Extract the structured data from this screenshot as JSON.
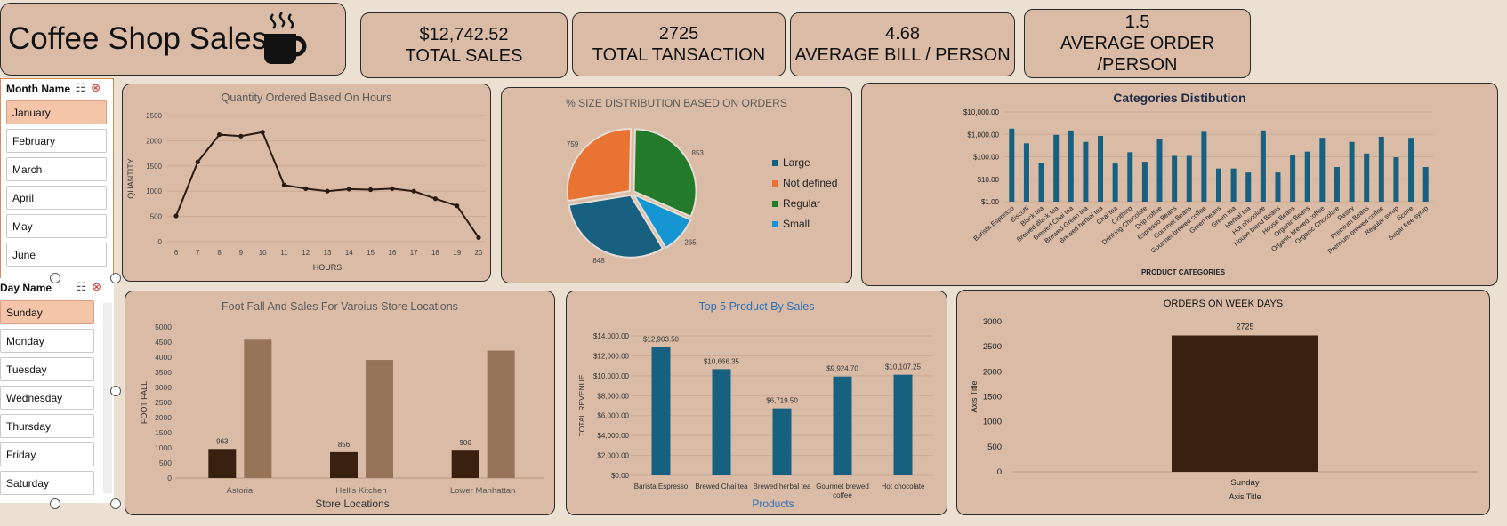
{
  "title": "Coffee Shop Sales",
  "kpis": [
    {
      "value": "$12,742.52",
      "label": "TOTAL SALES"
    },
    {
      "value": "2725",
      "label": "TOTAL TANSACTION"
    },
    {
      "value": "4.68",
      "label": "AVERAGE BILL / PERSON"
    },
    {
      "value": "1.5",
      "label": "AVERAGE ORDER /PERSON"
    }
  ],
  "month_slicer": {
    "header": "Month Name",
    "items": [
      "January",
      "February",
      "March",
      "April",
      "May",
      "June"
    ],
    "selected": "January"
  },
  "day_slicer": {
    "header": "Day Name",
    "items": [
      "Sunday",
      "Monday",
      "Tuesday",
      "Wednesday",
      "Thursday",
      "Friday",
      "Saturday"
    ],
    "selected": "Sunday"
  },
  "colors": {
    "panel": "#d9bba6",
    "dark_brown": "#3a2010",
    "light_brown": "#967459",
    "blue": "#17607f",
    "orange": "#e87332",
    "green": "#237a2a",
    "light_blue": "#1596d2"
  },
  "chart_data": [
    {
      "id": "hours",
      "type": "line",
      "title": "Quantity Ordered Based On Hours",
      "xlabel": "HOURS",
      "ylabel": "QUANTITY",
      "x": [
        6,
        7,
        8,
        9,
        10,
        11,
        12,
        13,
        14,
        15,
        16,
        17,
        18,
        19,
        20
      ],
      "values": [
        510,
        1580,
        2120,
        2090,
        2170,
        1120,
        1050,
        1000,
        1040,
        1030,
        1050,
        1000,
        850,
        710,
        80
      ],
      "ylim": [
        0,
        2500
      ],
      "yticks": [
        0,
        500,
        1000,
        1500,
        2000,
        2500
      ],
      "grid": true
    },
    {
      "id": "size",
      "type": "pie",
      "title": "% SIZE DISTRIBUTION BASED ON ORDERS",
      "categories": [
        "Large",
        "Not defined",
        "Regular",
        "Small"
      ],
      "values": [
        848,
        759,
        853,
        265
      ],
      "legend": "right"
    },
    {
      "id": "categories",
      "type": "bar",
      "title": "Categories Distibution",
      "xlabel": "PRODUCT CATEGORIES",
      "yscale": "log",
      "ylim": [
        1,
        10000
      ],
      "yticks": [
        "$1.00",
        "$10.00",
        "$100.00",
        "$1,000.00",
        "$10,000.00"
      ],
      "categories": [
        "Barista Espresso",
        "Biscotti",
        "Black tea",
        "Brewed Black tea",
        "Brewed Chai tea",
        "Brewed Green tea",
        "Brewed herbal tea",
        "Chai tea",
        "Clothing",
        "Drinking Chocolate",
        "Drip coffee",
        "Espresso Beans",
        "Gourmet Beans",
        "Gourmet brewed coffee",
        "Green beans",
        "Green tea",
        "Herbal tea",
        "Hot chocolate",
        "House blend Beans",
        "House Beans",
        "Organic Beans",
        "Organic brewed coffee",
        "Organic Chocolate",
        "Pastry",
        "Premium Beans",
        "Premium brewed coffee",
        "Regular syrup",
        "Scone",
        "Sugar free syrup"
      ],
      "values": [
        1800,
        400,
        55,
        950,
        1500,
        460,
        850,
        50,
        160,
        60,
        600,
        110,
        110,
        1300,
        30,
        30,
        20,
        1500,
        20,
        120,
        170,
        700,
        35,
        460,
        140,
        780,
        95,
        700,
        35
      ]
    },
    {
      "id": "locations",
      "type": "bar",
      "title": "Foot Fall And Sales For Varoius Store Locations",
      "xlabel": "Store Locations",
      "ylabel": "FOOT FALL",
      "categories": [
        "Astoria",
        "Hell's Kitchen",
        "Lower Manhattan"
      ],
      "series": [
        {
          "values": [
            963,
            856,
            906
          ],
          "labels": [
            "963",
            "856",
            "906"
          ]
        },
        {
          "values": [
            4580,
            3910,
            4220
          ]
        }
      ],
      "ylim": [
        0,
        5000
      ],
      "yticks": [
        0,
        500,
        1000,
        1500,
        2000,
        2500,
        3000,
        3500,
        4000,
        4500,
        5000
      ]
    },
    {
      "id": "top5",
      "type": "bar",
      "title": "Top 5 Product By Sales",
      "xlabel": "Products",
      "ylabel": "TOTAL REVENUE",
      "categories": [
        "Barista Espresso",
        "Brewed Chai tea",
        "Brewed herbal tea",
        "Gourmet brewed coffee",
        "Hot chocolate"
      ],
      "values": [
        12903.5,
        10666.35,
        6719.5,
        9924.7,
        10107.25
      ],
      "labels": [
        "$12,903.50",
        "$10,666.35",
        "$6,719.50",
        "$9,924.70",
        "$10,107.25"
      ],
      "ylim": [
        0,
        14000
      ],
      "yticks": [
        "$0.00",
        "$2,000.00",
        "$4,000.00",
        "$6,000.00",
        "$8,000.00",
        "$10,000.00",
        "$12,000.00",
        "$14,000.00"
      ],
      "grid": true
    },
    {
      "id": "weekdays",
      "type": "bar",
      "title": "ORDERS ON WEEK DAYS",
      "xlabel": "Axis Title",
      "ylabel": "Axis Title",
      "categories": [
        "Sunday"
      ],
      "values": [
        2725
      ],
      "labels": [
        "2725"
      ],
      "ylim": [
        0,
        3000
      ],
      "yticks": [
        0,
        500,
        1000,
        1500,
        2000,
        2500,
        3000
      ]
    }
  ]
}
